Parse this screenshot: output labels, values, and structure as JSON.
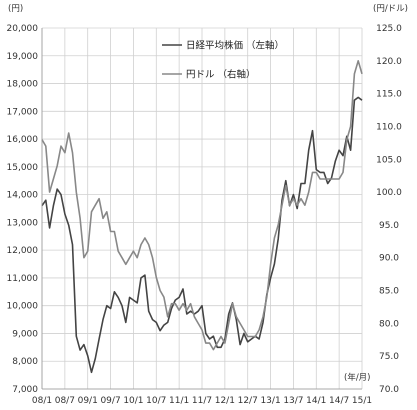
{
  "chart_data": {
    "type": "line",
    "left_unit": "(円)",
    "right_unit": "(円/ドル)",
    "x_unit": "(年/月)",
    "x_tick_labels": [
      "08/1",
      "08/7",
      "09/1",
      "09/7",
      "10/1",
      "10/7",
      "11/1",
      "11/7",
      "12/1",
      "12/7",
      "13/1",
      "13/7",
      "14/1",
      "14/7",
      "15/1"
    ],
    "y_left": {
      "range": [
        7000,
        20000
      ],
      "ticks": [
        "7,000",
        "8,000",
        "9,000",
        "10,000",
        "11,000",
        "12,000",
        "13,000",
        "14,000",
        "15,000",
        "16,000",
        "17,000",
        "18,000",
        "19,000",
        "20,000"
      ]
    },
    "y_right": {
      "range": [
        70,
        125
      ],
      "ticks": [
        "70.0",
        "75.0",
        "80.0",
        "85.0",
        "90.0",
        "95.0",
        "100.0",
        "105.0",
        "110.0",
        "115.0",
        "120.0",
        "125.0"
      ]
    },
    "grid": true,
    "legend_position": "top-center",
    "series": [
      {
        "name": "日経平均株価 （左軸）",
        "axis": "left",
        "color": "#444444",
        "x": [
          "08/1",
          "08/2",
          "08/3",
          "08/4",
          "08/5",
          "08/6",
          "08/7",
          "08/8",
          "08/9",
          "08/10",
          "08/11",
          "08/12",
          "09/1",
          "09/2",
          "09/3",
          "09/4",
          "09/5",
          "09/6",
          "09/7",
          "09/8",
          "09/9",
          "09/10",
          "09/11",
          "09/12",
          "10/1",
          "10/2",
          "10/3",
          "10/4",
          "10/5",
          "10/6",
          "10/7",
          "10/8",
          "10/9",
          "10/10",
          "10/11",
          "10/12",
          "11/1",
          "11/2",
          "11/3",
          "11/4",
          "11/5",
          "11/6",
          "11/7",
          "11/8",
          "11/9",
          "11/10",
          "11/11",
          "11/12",
          "12/1",
          "12/2",
          "12/3",
          "12/4",
          "12/5",
          "12/6",
          "12/7",
          "12/8",
          "12/9",
          "12/10",
          "12/11",
          "12/12",
          "13/1",
          "13/2",
          "13/3",
          "13/4",
          "13/5",
          "13/6",
          "13/7",
          "13/8",
          "13/9",
          "13/10",
          "13/11",
          "13/12",
          "14/1",
          "14/2",
          "14/3",
          "14/4",
          "14/5",
          "14/6",
          "14/7",
          "14/8",
          "14/9",
          "14/10",
          "14/11",
          "14/12",
          "15/1"
        ],
        "values": [
          13600,
          13800,
          12800,
          13600,
          14200,
          14000,
          13300,
          12900,
          12200,
          8900,
          8400,
          8600,
          8200,
          7600,
          8100,
          8800,
          9500,
          10000,
          9900,
          10500,
          10300,
          10000,
          9400,
          10300,
          10200,
          10100,
          11000,
          11100,
          9800,
          9500,
          9400,
          9100,
          9300,
          9400,
          9900,
          10200,
          10300,
          10600,
          9700,
          9800,
          9700,
          9800,
          10000,
          9000,
          8800,
          8900,
          8500,
          8500,
          8800,
          9700,
          10100,
          9500,
          8600,
          9000,
          8700,
          8800,
          8900,
          8800,
          9400,
          10400,
          11000,
          11500,
          12400,
          13800,
          14500,
          13600,
          14000,
          13500,
          14400,
          14400,
          15600,
          16300,
          14900,
          14800,
          14800,
          14400,
          14600,
          15200,
          15600,
          15400,
          16100,
          15600,
          17400,
          17500,
          17400
        ]
      },
      {
        "name": "円ドル （右軸）",
        "axis": "right",
        "color": "#888888",
        "x": [
          "08/1",
          "08/2",
          "08/3",
          "08/4",
          "08/5",
          "08/6",
          "08/7",
          "08/8",
          "08/9",
          "08/10",
          "08/11",
          "08/12",
          "09/1",
          "09/2",
          "09/3",
          "09/4",
          "09/5",
          "09/6",
          "09/7",
          "09/8",
          "09/9",
          "09/10",
          "09/11",
          "09/12",
          "10/1",
          "10/2",
          "10/3",
          "10/4",
          "10/5",
          "10/6",
          "10/7",
          "10/8",
          "10/9",
          "10/10",
          "10/11",
          "10/12",
          "11/1",
          "11/2",
          "11/3",
          "11/4",
          "11/5",
          "11/6",
          "11/7",
          "11/8",
          "11/9",
          "11/10",
          "11/11",
          "11/12",
          "12/1",
          "12/2",
          "12/3",
          "12/4",
          "12/5",
          "12/6",
          "12/7",
          "12/8",
          "12/9",
          "12/10",
          "12/11",
          "12/12",
          "13/1",
          "13/2",
          "13/3",
          "13/4",
          "13/5",
          "13/6",
          "13/7",
          "13/8",
          "13/9",
          "13/10",
          "13/11",
          "13/12",
          "14/1",
          "14/2",
          "14/3",
          "14/4",
          "14/5",
          "14/6",
          "14/7",
          "14/8",
          "14/9",
          "14/10",
          "14/11",
          "14/12",
          "15/1"
        ],
        "values": [
          108,
          107,
          100,
          102,
          104,
          107,
          106,
          109,
          106,
          100,
          96,
          90,
          91,
          97,
          98,
          99,
          96,
          97,
          94,
          94,
          91,
          90,
          89,
          90,
          91,
          90,
          92,
          93,
          92,
          90,
          87,
          85,
          84,
          81,
          83,
          83,
          82,
          83,
          82,
          83,
          81,
          80,
          79,
          77,
          77,
          76,
          77,
          78,
          77,
          80,
          83,
          81,
          80,
          79,
          78,
          78,
          78,
          79,
          81,
          84,
          89,
          93,
          95,
          98,
          101,
          98,
          99,
          98,
          99,
          98,
          100,
          103,
          103,
          102,
          102,
          102,
          102,
          102,
          102,
          103,
          108,
          110,
          118,
          120,
          118
        ]
      }
    ]
  }
}
